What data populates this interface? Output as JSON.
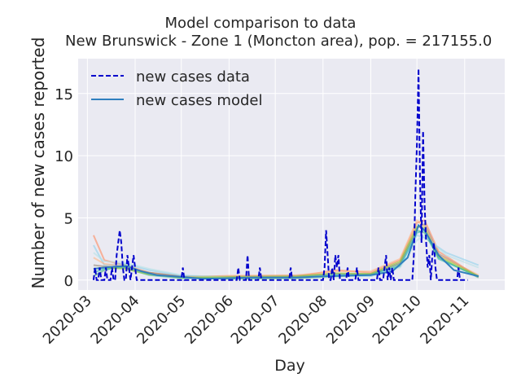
{
  "chart_data": {
    "type": "line",
    "title": "Model comparison to data",
    "subtitle": "New Brunswick - Zone 1 (Moncton area), pop. = 217155.0",
    "xlabel": "Day",
    "ylabel": "Number of new cases reported",
    "x_ticks": [
      "2020-03",
      "2020-04",
      "2020-05",
      "2020-06",
      "2020-07",
      "2020-08",
      "2020-09",
      "2020-10",
      "2020-11"
    ],
    "y_ticks": [
      0,
      5,
      10,
      15
    ],
    "ylim": [
      -0.8,
      17.8
    ],
    "xlim": [
      "2020-02-24",
      "2020-11-27"
    ],
    "grid": true,
    "legend": {
      "placement": "top-left",
      "entries": [
        "new cases data",
        "new cases model"
      ]
    },
    "colors": {
      "background": "#eaeaf2",
      "data": "#0000cc",
      "model": "#2f7fbf"
    },
    "series": [
      {
        "name": "new cases data",
        "style": "dashed",
        "points": [
          [
            "2020-03-05",
            0
          ],
          [
            "2020-03-06",
            1
          ],
          [
            "2020-03-07",
            0
          ],
          [
            "2020-03-08",
            0
          ],
          [
            "2020-03-09",
            1
          ],
          [
            "2020-03-10",
            0
          ],
          [
            "2020-03-12",
            0
          ],
          [
            "2020-03-13",
            1
          ],
          [
            "2020-03-14",
            0
          ],
          [
            "2020-03-15",
            0
          ],
          [
            "2020-03-16",
            0
          ],
          [
            "2020-03-17",
            1
          ],
          [
            "2020-03-18",
            0
          ],
          [
            "2020-03-19",
            0
          ],
          [
            "2020-03-20",
            2
          ],
          [
            "2020-03-21",
            3
          ],
          [
            "2020-03-22",
            4
          ],
          [
            "2020-03-23",
            3
          ],
          [
            "2020-03-24",
            1
          ],
          [
            "2020-03-25",
            0
          ],
          [
            "2020-03-26",
            0
          ],
          [
            "2020-03-27",
            2
          ],
          [
            "2020-03-28",
            1
          ],
          [
            "2020-03-29",
            0
          ],
          [
            "2020-03-30",
            1
          ],
          [
            "2020-03-31",
            2
          ],
          [
            "2020-04-01",
            1
          ],
          [
            "2020-04-02",
            0
          ],
          [
            "2020-04-05",
            0
          ],
          [
            "2020-04-15",
            0
          ],
          [
            "2020-04-25",
            0
          ],
          [
            "2020-05-01",
            0
          ],
          [
            "2020-05-02",
            1
          ],
          [
            "2020-05-03",
            0
          ],
          [
            "2020-05-10",
            0
          ],
          [
            "2020-05-20",
            0
          ],
          [
            "2020-05-31",
            0
          ],
          [
            "2020-06-06",
            0
          ],
          [
            "2020-06-07",
            1
          ],
          [
            "2020-06-08",
            0
          ],
          [
            "2020-06-12",
            0
          ],
          [
            "2020-06-13",
            2
          ],
          [
            "2020-06-14",
            0
          ],
          [
            "2020-06-20",
            0
          ],
          [
            "2020-06-21",
            1
          ],
          [
            "2020-06-22",
            0
          ],
          [
            "2020-06-30",
            0
          ],
          [
            "2020-07-10",
            0
          ],
          [
            "2020-07-11",
            1
          ],
          [
            "2020-07-12",
            0
          ],
          [
            "2020-07-20",
            0
          ],
          [
            "2020-08-01",
            0
          ],
          [
            "2020-08-02",
            1
          ],
          [
            "2020-08-03",
            4
          ],
          [
            "2020-08-04",
            2
          ],
          [
            "2020-08-05",
            0
          ],
          [
            "2020-08-06",
            0
          ],
          [
            "2020-08-07",
            1
          ],
          [
            "2020-08-08",
            0
          ],
          [
            "2020-08-09",
            2
          ],
          [
            "2020-08-10",
            1
          ],
          [
            "2020-08-11",
            2
          ],
          [
            "2020-08-12",
            0
          ],
          [
            "2020-08-16",
            0
          ],
          [
            "2020-08-17",
            1
          ],
          [
            "2020-08-18",
            0
          ],
          [
            "2020-08-22",
            0
          ],
          [
            "2020-08-23",
            1
          ],
          [
            "2020-08-24",
            0
          ],
          [
            "2020-09-01",
            0
          ],
          [
            "2020-09-05",
            0
          ],
          [
            "2020-09-06",
            1
          ],
          [
            "2020-09-07",
            0
          ],
          [
            "2020-09-09",
            0
          ],
          [
            "2020-09-10",
            1
          ],
          [
            "2020-09-11",
            2
          ],
          [
            "2020-09-12",
            0
          ],
          [
            "2020-09-13",
            1
          ],
          [
            "2020-09-14",
            0
          ],
          [
            "2020-09-15",
            1
          ],
          [
            "2020-09-16",
            0
          ],
          [
            "2020-09-20",
            0
          ],
          [
            "2020-09-28",
            0
          ],
          [
            "2020-09-29",
            2
          ],
          [
            "2020-09-30",
            7
          ],
          [
            "2020-10-01",
            11
          ],
          [
            "2020-10-02",
            17
          ],
          [
            "2020-10-03",
            8
          ],
          [
            "2020-10-04",
            3
          ],
          [
            "2020-10-05",
            12
          ],
          [
            "2020-10-06",
            6
          ],
          [
            "2020-10-07",
            3
          ],
          [
            "2020-10-08",
            1
          ],
          [
            "2020-10-09",
            2
          ],
          [
            "2020-10-10",
            0
          ],
          [
            "2020-10-11",
            2
          ],
          [
            "2020-10-12",
            3
          ],
          [
            "2020-10-13",
            1
          ],
          [
            "2020-10-14",
            0
          ],
          [
            "2020-10-20",
            0
          ],
          [
            "2020-10-27",
            0
          ],
          [
            "2020-10-28",
            1
          ],
          [
            "2020-10-29",
            0
          ],
          [
            "2020-11-03",
            0
          ]
        ]
      },
      {
        "name": "new cases model",
        "points": [
          [
            "2020-03-05",
            0.9
          ],
          [
            "2020-03-12",
            1.0
          ],
          [
            "2020-03-20",
            1.1
          ],
          [
            "2020-03-27",
            1.1
          ],
          [
            "2020-04-05",
            0.7
          ],
          [
            "2020-04-15",
            0.4
          ],
          [
            "2020-05-01",
            0.25
          ],
          [
            "2020-05-15",
            0.1
          ],
          [
            "2020-06-01",
            0.15
          ],
          [
            "2020-06-15",
            0.2
          ],
          [
            "2020-07-01",
            0.2
          ],
          [
            "2020-07-15",
            0.2
          ],
          [
            "2020-08-01",
            0.3
          ],
          [
            "2020-08-15",
            0.35
          ],
          [
            "2020-09-01",
            0.4
          ],
          [
            "2020-09-15",
            0.7
          ],
          [
            "2020-09-25",
            1.8
          ],
          [
            "2020-10-02",
            4.4
          ],
          [
            "2020-10-06",
            4.0
          ],
          [
            "2020-10-15",
            2.0
          ],
          [
            "2020-10-25",
            0.8
          ],
          [
            "2020-11-10",
            0.3
          ]
        ]
      }
    ],
    "model_ensemble": [
      {
        "color": "#ff7f50",
        "points": [
          [
            "2020-03-05",
            3.6
          ],
          [
            "2020-03-12",
            1.6
          ],
          [
            "2020-03-25",
            1.2
          ],
          [
            "2020-04-10",
            0.6
          ],
          [
            "2020-05-01",
            0.25
          ],
          [
            "2020-06-01",
            0.25
          ],
          [
            "2020-07-15",
            0.3
          ],
          [
            "2020-08-10",
            0.8
          ],
          [
            "2020-09-01",
            0.6
          ],
          [
            "2020-09-20",
            1.6
          ],
          [
            "2020-10-01",
            4.6
          ],
          [
            "2020-10-06",
            4.8
          ],
          [
            "2020-10-15",
            2.3
          ],
          [
            "2020-11-10",
            0.25
          ]
        ]
      },
      {
        "color": "#87ceeb",
        "points": [
          [
            "2020-03-05",
            2.8
          ],
          [
            "2020-03-12",
            1.2
          ],
          [
            "2020-03-25",
            1.3
          ],
          [
            "2020-04-10",
            0.8
          ],
          [
            "2020-05-01",
            0.35
          ],
          [
            "2020-06-01",
            0.15
          ],
          [
            "2020-07-15",
            0.2
          ],
          [
            "2020-08-10",
            0.4
          ],
          [
            "2020-09-01",
            0.3
          ],
          [
            "2020-09-20",
            1.2
          ],
          [
            "2020-10-01",
            3.6
          ],
          [
            "2020-10-06",
            3.4
          ],
          [
            "2020-10-20",
            2.2
          ],
          [
            "2020-11-10",
            1.2
          ]
        ]
      },
      {
        "color": "#3cb371",
        "points": [
          [
            "2020-03-05",
            0.3
          ],
          [
            "2020-03-12",
            0.8
          ],
          [
            "2020-03-25",
            1.2
          ],
          [
            "2020-04-10",
            0.5
          ],
          [
            "2020-05-01",
            0.2
          ],
          [
            "2020-06-01",
            0.1
          ],
          [
            "2020-07-15",
            0.15
          ],
          [
            "2020-08-10",
            0.3
          ],
          [
            "2020-09-01",
            0.4
          ],
          [
            "2020-09-20",
            1.3
          ],
          [
            "2020-10-01",
            4.0
          ],
          [
            "2020-10-06",
            3.8
          ],
          [
            "2020-10-15",
            1.8
          ],
          [
            "2020-11-10",
            0.2
          ]
        ]
      },
      {
        "color": "#8b7d6b",
        "points": [
          [
            "2020-03-05",
            1.2
          ],
          [
            "2020-03-12",
            1.1
          ],
          [
            "2020-03-25",
            1.0
          ],
          [
            "2020-04-10",
            0.6
          ],
          [
            "2020-05-01",
            0.3
          ],
          [
            "2020-06-01",
            0.3
          ],
          [
            "2020-07-15",
            0.35
          ],
          [
            "2020-08-10",
            0.5
          ],
          [
            "2020-09-01",
            0.5
          ],
          [
            "2020-09-20",
            1.4
          ],
          [
            "2020-10-01",
            4.2
          ],
          [
            "2020-10-06",
            4.5
          ],
          [
            "2020-10-15",
            2.1
          ],
          [
            "2020-11-10",
            0.3
          ]
        ]
      },
      {
        "color": "#ffb07c",
        "points": [
          [
            "2020-03-05",
            1.8
          ],
          [
            "2020-03-12",
            1.3
          ],
          [
            "2020-03-25",
            1.1
          ],
          [
            "2020-04-10",
            0.5
          ],
          [
            "2020-05-01",
            0.2
          ],
          [
            "2020-06-01",
            0.35
          ],
          [
            "2020-07-15",
            0.4
          ],
          [
            "2020-08-10",
            0.7
          ],
          [
            "2020-09-01",
            0.7
          ],
          [
            "2020-09-20",
            1.7
          ],
          [
            "2020-10-01",
            4.8
          ],
          [
            "2020-10-06",
            4.3
          ],
          [
            "2020-10-15",
            2.0
          ],
          [
            "2020-11-10",
            0.4
          ]
        ]
      },
      {
        "color": "#20b2aa",
        "points": [
          [
            "2020-03-05",
            0.6
          ],
          [
            "2020-03-12",
            0.9
          ],
          [
            "2020-03-25",
            1.0
          ],
          [
            "2020-04-10",
            0.4
          ],
          [
            "2020-05-01",
            0.15
          ],
          [
            "2020-06-01",
            0.2
          ],
          [
            "2020-07-15",
            0.25
          ],
          [
            "2020-08-10",
            0.45
          ],
          [
            "2020-09-01",
            0.45
          ],
          [
            "2020-09-20",
            1.1
          ],
          [
            "2020-10-01",
            3.8
          ],
          [
            "2020-10-06",
            4.0
          ],
          [
            "2020-10-15",
            1.7
          ],
          [
            "2020-11-10",
            0.3
          ]
        ]
      },
      {
        "color": "#b0e0e6",
        "points": [
          [
            "2020-03-05",
            2.2
          ],
          [
            "2020-03-12",
            1.5
          ],
          [
            "2020-03-25",
            1.4
          ],
          [
            "2020-04-10",
            0.9
          ],
          [
            "2020-05-01",
            0.4
          ],
          [
            "2020-06-01",
            0.2
          ],
          [
            "2020-07-15",
            0.2
          ],
          [
            "2020-08-10",
            0.4
          ],
          [
            "2020-09-01",
            0.35
          ],
          [
            "2020-09-20",
            1.0
          ],
          [
            "2020-10-01",
            3.2
          ],
          [
            "2020-10-06",
            3.6
          ],
          [
            "2020-10-20",
            2.0
          ],
          [
            "2020-11-10",
            1.0
          ]
        ]
      },
      {
        "color": "#9acd32",
        "points": [
          [
            "2020-03-05",
            0.9
          ],
          [
            "2020-03-12",
            1.0
          ],
          [
            "2020-03-25",
            0.9
          ],
          [
            "2020-04-10",
            0.45
          ],
          [
            "2020-05-01",
            0.2
          ],
          [
            "2020-06-01",
            0.25
          ],
          [
            "2020-07-15",
            0.3
          ],
          [
            "2020-08-10",
            0.55
          ],
          [
            "2020-09-01",
            0.5
          ],
          [
            "2020-09-20",
            1.5
          ],
          [
            "2020-10-01",
            4.3
          ],
          [
            "2020-10-06",
            4.2
          ],
          [
            "2020-10-15",
            1.9
          ],
          [
            "2020-11-10",
            0.3
          ]
        ]
      }
    ]
  }
}
